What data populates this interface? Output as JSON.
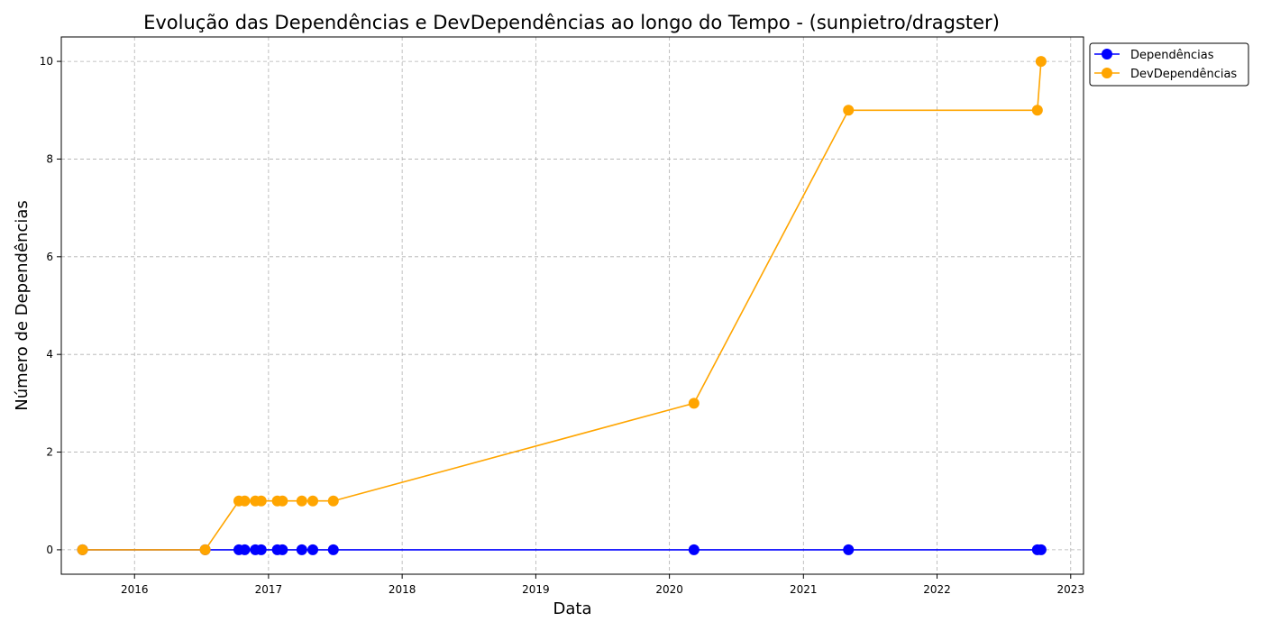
{
  "chart_data": {
    "type": "line",
    "title": "Evolução das Dependências e DevDependências ao longo do Tempo - (sunpietro/dragster)",
    "xlabel": "Data",
    "ylabel": "Número de Dependências",
    "xlim": [
      "2015-06-15",
      "2023-02-05"
    ],
    "ylim": [
      -0.5,
      10.5
    ],
    "x_ticks": [
      "2016",
      "2017",
      "2018",
      "2019",
      "2020",
      "2021",
      "2022",
      "2023"
    ],
    "y_ticks": [
      "0",
      "2",
      "4",
      "6",
      "8",
      "10"
    ],
    "grid": true,
    "legend_position": "outside-top-right",
    "series": [
      {
        "name": "Dependências",
        "color": "#0000ff",
        "marker": "circle",
        "x": [
          "2015-08-12",
          "2016-07-12",
          "2016-10-12",
          "2016-10-28",
          "2016-11-26",
          "2016-12-12",
          "2017-01-25",
          "2017-02-08",
          "2017-04-02",
          "2017-05-02",
          "2017-06-27",
          "2020-03-08",
          "2021-05-04",
          "2022-10-02",
          "2022-10-12"
        ],
        "y": [
          0,
          0,
          0,
          0,
          0,
          0,
          0,
          0,
          0,
          0,
          0,
          0,
          0,
          0,
          0
        ]
      },
      {
        "name": "DevDependências",
        "color": "#ffa500",
        "marker": "circle",
        "x": [
          "2015-08-12",
          "2016-07-12",
          "2016-10-12",
          "2016-10-28",
          "2016-11-26",
          "2016-12-12",
          "2017-01-25",
          "2017-02-08",
          "2017-04-02",
          "2017-05-02",
          "2017-06-27",
          "2020-03-08",
          "2021-05-04",
          "2022-10-02",
          "2022-10-12"
        ],
        "y": [
          0,
          0,
          1,
          1,
          1,
          1,
          1,
          1,
          1,
          1,
          1,
          3,
          9,
          9,
          10
        ]
      }
    ]
  }
}
